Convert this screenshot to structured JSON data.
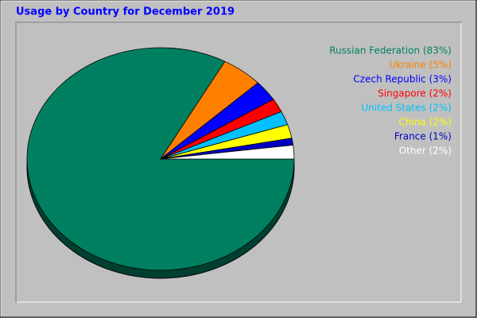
{
  "chart_data": {
    "type": "pie",
    "title": "Usage by Country for December 2019",
    "categories": [
      "Russian Federation (83%)",
      "Ukraine (5%)",
      "Czech Republic (3%)",
      "Singapore (2%)",
      "United States (2%)",
      "China (2%)",
      "France (1%)",
      "Other (2%)"
    ],
    "values": [
      83,
      5,
      3,
      2,
      2,
      2,
      1,
      2
    ],
    "colors": [
      "#008060",
      "#ff8000",
      "#0000ff",
      "#ff0000",
      "#00c0ff",
      "#ffff00",
      "#0000c0",
      "#ffffff"
    ]
  }
}
